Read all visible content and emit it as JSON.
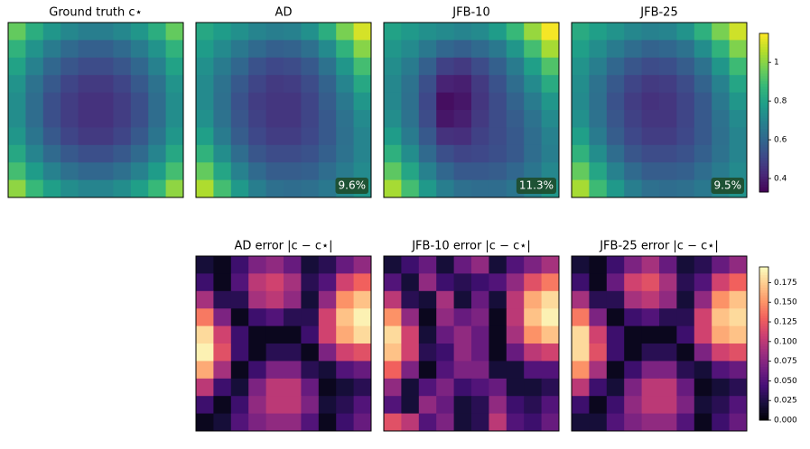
{
  "chart_data": [
    {
      "type": "heatmap",
      "colormap": "viridis",
      "zlim": [
        0.33,
        1.15
      ],
      "zticks": [
        0.4,
        0.6,
        0.8,
        1.0
      ],
      "panels": [
        {
          "title": "Ground truth c⋆",
          "values": [
            [
              0.95,
              0.84,
              0.76,
              0.71,
              0.68,
              0.68,
              0.71,
              0.76,
              0.84,
              0.95
            ],
            [
              0.86,
              0.75,
              0.67,
              0.61,
              0.58,
              0.58,
              0.61,
              0.67,
              0.75,
              0.86
            ],
            [
              0.8,
              0.69,
              0.6,
              0.55,
              0.52,
              0.52,
              0.55,
              0.6,
              0.69,
              0.8
            ],
            [
              0.75,
              0.64,
              0.56,
              0.5,
              0.47,
              0.47,
              0.5,
              0.56,
              0.64,
              0.75
            ],
            [
              0.73,
              0.62,
              0.53,
              0.48,
              0.45,
              0.45,
              0.48,
              0.53,
              0.62,
              0.73
            ],
            [
              0.73,
              0.62,
              0.53,
              0.48,
              0.45,
              0.45,
              0.48,
              0.53,
              0.62,
              0.73
            ],
            [
              0.76,
              0.65,
              0.56,
              0.5,
              0.47,
              0.47,
              0.5,
              0.56,
              0.65,
              0.76
            ],
            [
              0.82,
              0.7,
              0.61,
              0.56,
              0.53,
              0.53,
              0.56,
              0.61,
              0.7,
              0.82
            ],
            [
              0.9,
              0.78,
              0.69,
              0.63,
              0.6,
              0.6,
              0.63,
              0.69,
              0.78,
              0.9
            ],
            [
              1.01,
              0.88,
              0.79,
              0.73,
              0.7,
              0.7,
              0.73,
              0.79,
              0.88,
              1.01
            ]
          ]
        },
        {
          "title": "AD",
          "annotation": "9.6%",
          "values": [
            [
              0.82,
              0.78,
              0.74,
              0.7,
              0.68,
              0.69,
              0.74,
              0.84,
              0.98,
              1.1
            ],
            [
              0.78,
              0.72,
              0.66,
              0.61,
              0.58,
              0.59,
              0.63,
              0.72,
              0.86,
              1.0
            ],
            [
              0.74,
              0.67,
              0.6,
              0.54,
              0.51,
              0.52,
              0.56,
              0.64,
              0.76,
              0.9
            ],
            [
              0.72,
              0.64,
              0.56,
              0.5,
              0.47,
              0.48,
              0.52,
              0.59,
              0.7,
              0.82
            ],
            [
              0.72,
              0.63,
              0.54,
              0.48,
              0.46,
              0.46,
              0.5,
              0.57,
              0.66,
              0.76
            ],
            [
              0.74,
              0.64,
              0.55,
              0.49,
              0.46,
              0.46,
              0.5,
              0.56,
              0.64,
              0.72
            ],
            [
              0.79,
              0.67,
              0.57,
              0.51,
              0.48,
              0.48,
              0.51,
              0.56,
              0.63,
              0.7
            ],
            [
              0.86,
              0.73,
              0.62,
              0.55,
              0.52,
              0.52,
              0.54,
              0.58,
              0.64,
              0.7
            ],
            [
              0.95,
              0.81,
              0.69,
              0.61,
              0.57,
              0.57,
              0.58,
              0.62,
              0.67,
              0.72
            ],
            [
              1.05,
              0.9,
              0.77,
              0.68,
              0.63,
              0.62,
              0.63,
              0.66,
              0.71,
              0.76
            ]
          ]
        },
        {
          "title": "JFB-10",
          "annotation": "11.3%",
          "values": [
            [
              0.8,
              0.77,
              0.74,
              0.72,
              0.7,
              0.72,
              0.78,
              0.88,
              1.02,
              1.14
            ],
            [
              0.76,
              0.72,
              0.66,
              0.6,
              0.58,
              0.61,
              0.66,
              0.76,
              0.9,
              1.04
            ],
            [
              0.73,
              0.67,
              0.58,
              0.49,
              0.47,
              0.52,
              0.58,
              0.67,
              0.79,
              0.92
            ],
            [
              0.71,
              0.64,
              0.53,
              0.41,
              0.4,
              0.47,
              0.54,
              0.62,
              0.72,
              0.83
            ],
            [
              0.71,
              0.63,
              0.51,
              0.36,
              0.38,
              0.46,
              0.52,
              0.59,
              0.67,
              0.76
            ],
            [
              0.73,
              0.64,
              0.52,
              0.38,
              0.4,
              0.47,
              0.52,
              0.57,
              0.64,
              0.72
            ],
            [
              0.78,
              0.67,
              0.56,
              0.45,
              0.44,
              0.49,
              0.52,
              0.56,
              0.62,
              0.69
            ],
            [
              0.85,
              0.73,
              0.61,
              0.53,
              0.5,
              0.51,
              0.53,
              0.56,
              0.62,
              0.68
            ],
            [
              0.94,
              0.81,
              0.69,
              0.6,
              0.56,
              0.56,
              0.57,
              0.6,
              0.65,
              0.71
            ],
            [
              1.04,
              0.9,
              0.77,
              0.68,
              0.63,
              0.62,
              0.62,
              0.65,
              0.7,
              0.76
            ]
          ]
        },
        {
          "title": "JFB-25",
          "annotation": "9.5%",
          "values": [
            [
              0.83,
              0.79,
              0.75,
              0.71,
              0.69,
              0.7,
              0.75,
              0.85,
              0.98,
              1.09
            ],
            [
              0.79,
              0.73,
              0.67,
              0.62,
              0.59,
              0.6,
              0.64,
              0.73,
              0.86,
              0.99
            ],
            [
              0.75,
              0.68,
              0.6,
              0.55,
              0.52,
              0.53,
              0.57,
              0.64,
              0.76,
              0.89
            ],
            [
              0.73,
              0.64,
              0.56,
              0.5,
              0.47,
              0.48,
              0.52,
              0.59,
              0.69,
              0.81
            ],
            [
              0.72,
              0.63,
              0.54,
              0.48,
              0.45,
              0.46,
              0.5,
              0.56,
              0.66,
              0.76
            ],
            [
              0.74,
              0.64,
              0.55,
              0.49,
              0.46,
              0.46,
              0.5,
              0.56,
              0.64,
              0.72
            ],
            [
              0.79,
              0.67,
              0.57,
              0.51,
              0.48,
              0.48,
              0.51,
              0.56,
              0.63,
              0.7
            ],
            [
              0.86,
              0.73,
              0.62,
              0.55,
              0.52,
              0.52,
              0.54,
              0.58,
              0.64,
              0.7
            ],
            [
              0.95,
              0.81,
              0.69,
              0.61,
              0.57,
              0.57,
              0.58,
              0.62,
              0.67,
              0.72
            ],
            [
              1.04,
              0.89,
              0.77,
              0.68,
              0.63,
              0.62,
              0.63,
              0.66,
              0.71,
              0.75
            ]
          ]
        }
      ]
    },
    {
      "type": "heatmap",
      "colormap": "magma",
      "zlim": [
        0,
        0.195
      ],
      "zticks": [
        {
          "value": 0,
          "label": "0.000"
        },
        {
          "value": 0.025,
          "label": "0.025"
        },
        {
          "value": 0.05,
          "label": "0.050"
        },
        {
          "value": 0.075,
          "label": "0.075"
        },
        {
          "value": 0.1,
          "label": "0.100"
        },
        {
          "value": 0.125,
          "label": "0.125"
        },
        {
          "value": 0.15,
          "label": "0.150"
        },
        {
          "value": 0.175,
          "label": "0.175"
        }
      ],
      "panels": [
        {
          "title": "AD error |c − c⋆|",
          "values": [
            [
              0.02,
              0.01,
              0.04,
              0.07,
              0.08,
              0.06,
              0.02,
              0.03,
              0.06,
              0.08
            ],
            [
              0.04,
              0.01,
              0.05,
              0.1,
              0.11,
              0.09,
              0.03,
              0.05,
              0.11,
              0.13
            ],
            [
              0.09,
              0.03,
              0.03,
              0.09,
              0.1,
              0.08,
              0.02,
              0.08,
              0.15,
              0.17
            ],
            [
              0.14,
              0.07,
              0.01,
              0.04,
              0.05,
              0.03,
              0.03,
              0.11,
              0.17,
              0.19
            ],
            [
              0.18,
              0.11,
              0.04,
              0.01,
              0.01,
              0.01,
              0.04,
              0.11,
              0.16,
              0.18
            ],
            [
              0.19,
              0.12,
              0.04,
              0.01,
              0.03,
              0.03,
              0.01,
              0.07,
              0.11,
              0.12
            ],
            [
              0.16,
              0.09,
              0.01,
              0.04,
              0.07,
              0.07,
              0.03,
              0.02,
              0.05,
              0.06
            ],
            [
              0.1,
              0.04,
              0.02,
              0.07,
              0.1,
              0.1,
              0.06,
              0.01,
              0.02,
              0.03
            ],
            [
              0.04,
              0.01,
              0.04,
              0.08,
              0.1,
              0.1,
              0.07,
              0.02,
              0.03,
              0.05
            ],
            [
              0.01,
              0.02,
              0.05,
              0.07,
              0.08,
              0.08,
              0.05,
              0.01,
              0.04,
              0.06
            ]
          ]
        },
        {
          "title": "JFB-10 error |c − c⋆|",
          "values": [
            [
              0.02,
              0.04,
              0.06,
              0.02,
              0.06,
              0.08,
              0.02,
              0.05,
              0.07,
              0.09
            ],
            [
              0.05,
              0.02,
              0.08,
              0.04,
              0.03,
              0.04,
              0.05,
              0.08,
              0.12,
              0.14
            ],
            [
              0.1,
              0.03,
              0.02,
              0.09,
              0.02,
              0.06,
              0.02,
              0.1,
              0.16,
              0.18
            ],
            [
              0.15,
              0.08,
              0.01,
              0.08,
              0.06,
              0.07,
              0.01,
              0.1,
              0.17,
              0.19
            ],
            [
              0.18,
              0.11,
              0.02,
              0.06,
              0.08,
              0.06,
              0.01,
              0.09,
              0.15,
              0.17
            ],
            [
              0.17,
              0.11,
              0.03,
              0.04,
              0.08,
              0.06,
              0.01,
              0.06,
              0.1,
              0.11
            ],
            [
              0.13,
              0.07,
              0.01,
              0.05,
              0.07,
              0.07,
              0.02,
              0.02,
              0.05,
              0.05
            ],
            [
              0.08,
              0.02,
              0.05,
              0.07,
              0.04,
              0.05,
              0.06,
              0.02,
              0.02,
              0.03
            ],
            [
              0.05,
              0.02,
              0.08,
              0.06,
              0.02,
              0.03,
              0.08,
              0.04,
              0.03,
              0.05
            ],
            [
              0.12,
              0.1,
              0.05,
              0.07,
              0.02,
              0.03,
              0.1,
              0.05,
              0.04,
              0.06
            ]
          ]
        },
        {
          "title": "JFB-25 error |c − c⋆|",
          "values": [
            [
              0.02,
              0.01,
              0.04,
              0.07,
              0.09,
              0.06,
              0.02,
              0.03,
              0.06,
              0.08
            ],
            [
              0.04,
              0.01,
              0.06,
              0.11,
              0.12,
              0.09,
              0.03,
              0.05,
              0.11,
              0.13
            ],
            [
              0.09,
              0.03,
              0.03,
              0.09,
              0.1,
              0.08,
              0.02,
              0.08,
              0.15,
              0.17
            ],
            [
              0.14,
              0.07,
              0.01,
              0.04,
              0.05,
              0.03,
              0.03,
              0.11,
              0.17,
              0.18
            ],
            [
              0.18,
              0.11,
              0.04,
              0.01,
              0.01,
              0.01,
              0.04,
              0.11,
              0.16,
              0.17
            ],
            [
              0.18,
              0.12,
              0.04,
              0.01,
              0.03,
              0.03,
              0.01,
              0.07,
              0.11,
              0.12
            ],
            [
              0.15,
              0.09,
              0.01,
              0.04,
              0.07,
              0.07,
              0.03,
              0.02,
              0.05,
              0.06
            ],
            [
              0.1,
              0.04,
              0.02,
              0.07,
              0.1,
              0.1,
              0.06,
              0.01,
              0.02,
              0.03
            ],
            [
              0.04,
              0.01,
              0.04,
              0.08,
              0.1,
              0.1,
              0.07,
              0.02,
              0.03,
              0.05
            ],
            [
              0.02,
              0.02,
              0.05,
              0.07,
              0.08,
              0.08,
              0.05,
              0.01,
              0.04,
              0.06
            ]
          ]
        }
      ]
    }
  ]
}
